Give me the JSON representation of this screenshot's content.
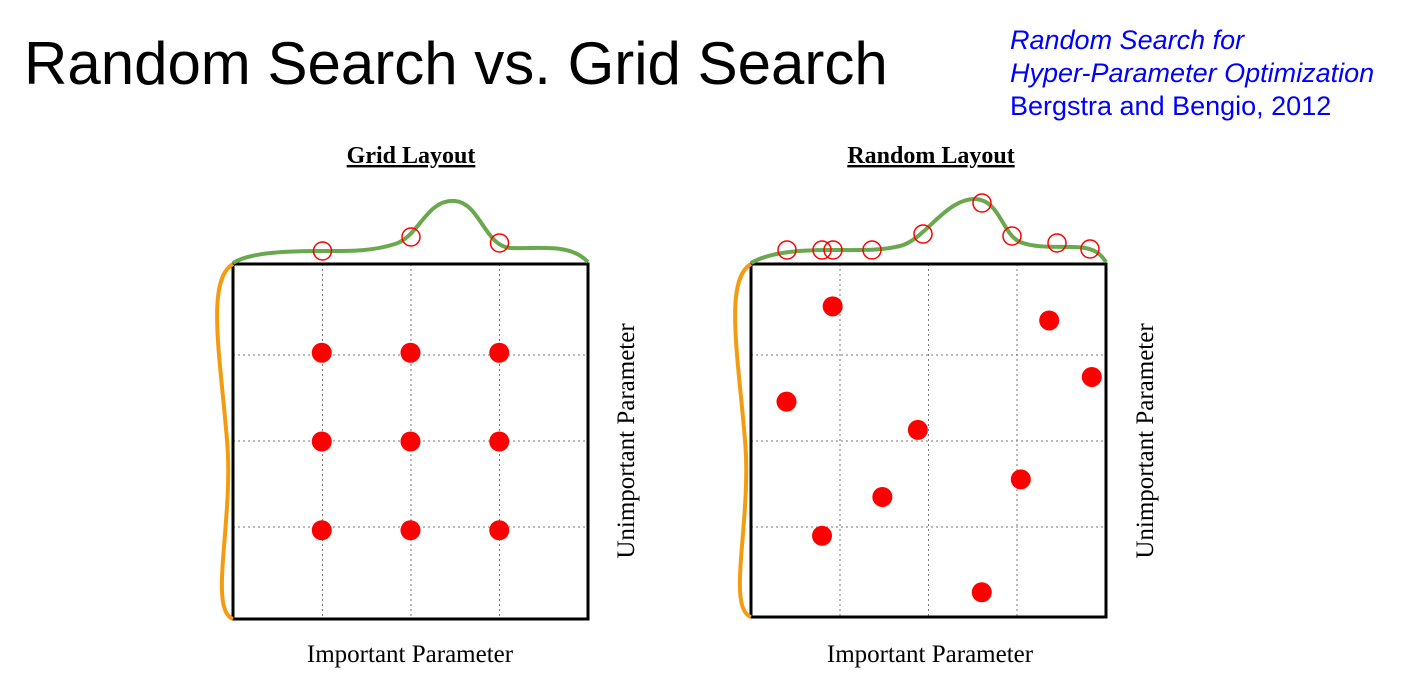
{
  "title": "Random Search vs. Grid Search",
  "citation": {
    "line1": "Random Search for",
    "line2": "Hyper-Parameter Optimization",
    "line3": "Bergstra and Bengio, 2012"
  },
  "colors": {
    "points": "#ff0000",
    "important_curve": "#6aa84f",
    "unimportant_curve": "#f39c12",
    "citation": "#0000ff"
  },
  "panels": [
    {
      "title": "Grid Layout",
      "xlabel": "Important Parameter",
      "ylabel": "Unimportant Parameter",
      "points": [
        {
          "x": 0.25,
          "y": 0.25
        },
        {
          "x": 0.5,
          "y": 0.25
        },
        {
          "x": 0.75,
          "y": 0.25
        },
        {
          "x": 0.25,
          "y": 0.5
        },
        {
          "x": 0.5,
          "y": 0.5
        },
        {
          "x": 0.75,
          "y": 0.5
        },
        {
          "x": 0.25,
          "y": 0.75
        },
        {
          "x": 0.5,
          "y": 0.75
        },
        {
          "x": 0.75,
          "y": 0.75
        }
      ]
    },
    {
      "title": "Random Layout",
      "xlabel": "Important Parameter",
      "ylabel": "Unimportant Parameter",
      "points": [
        {
          "x": 0.23,
          "y": 0.12
        },
        {
          "x": 0.84,
          "y": 0.16
        },
        {
          "x": 0.96,
          "y": 0.32
        },
        {
          "x": 0.1,
          "y": 0.39
        },
        {
          "x": 0.47,
          "y": 0.47
        },
        {
          "x": 0.76,
          "y": 0.61
        },
        {
          "x": 0.37,
          "y": 0.66
        },
        {
          "x": 0.2,
          "y": 0.77
        },
        {
          "x": 0.65,
          "y": 0.93
        }
      ]
    }
  ]
}
